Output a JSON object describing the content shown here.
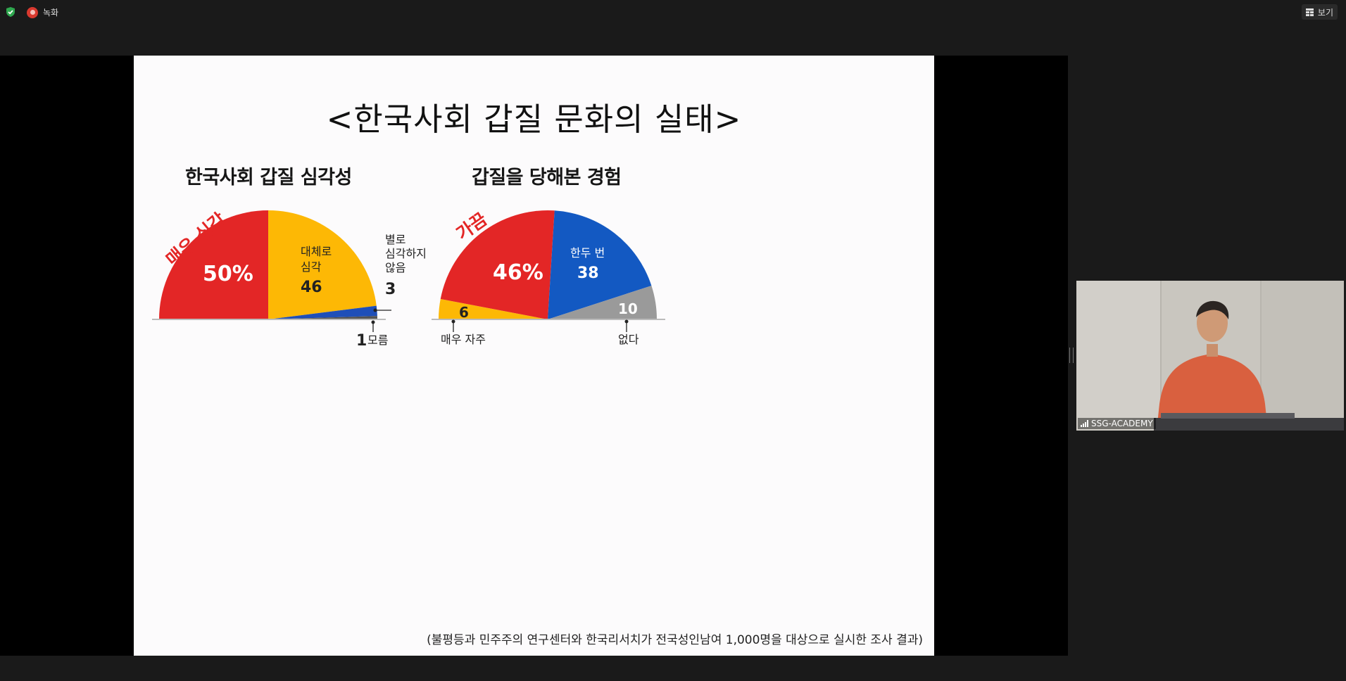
{
  "topbar": {
    "recording_label": "녹화",
    "view_label": "보기"
  },
  "slide": {
    "title": "<한국사회 갑질 문화의 실태>",
    "footnote": "(불평등과 민주주의 연구센터와 한국리서치가 전국성인남여 1,000명을 대상으로 실시한 조사 결과)"
  },
  "chart_data": [
    {
      "type": "pie",
      "title": "한국사회 갑질 심각성",
      "slices": [
        {
          "name": "매우 심각",
          "value": 50,
          "value_label": "50%",
          "color": "#e32626"
        },
        {
          "name": "대체로 심각",
          "value": 46,
          "value_label": "46",
          "color": "#fdb805"
        },
        {
          "name": "별로 심각하지 않음",
          "value": 3,
          "value_label": "3",
          "color": "#1f4fb8"
        },
        {
          "name": "모름",
          "value": 1,
          "value_label": "1",
          "color": "#555555"
        }
      ]
    },
    {
      "type": "pie",
      "title": "갑질을 당해본 경험",
      "slices": [
        {
          "name": "매우 자주",
          "value": 6,
          "value_label": "6",
          "color": "#fdb805"
        },
        {
          "name": "가끔",
          "value": 46,
          "value_label": "46%",
          "color": "#e32626"
        },
        {
          "name": "한두 번",
          "value": 38,
          "value_label": "38",
          "color": "#1359c2"
        },
        {
          "name": "없다",
          "value": 10,
          "value_label": "10",
          "color": "#9a9a9a"
        }
      ]
    }
  ],
  "webcam": {
    "participant_name": "SSG-ACADEMY"
  },
  "colors": {
    "background": "#1a1a1a",
    "slide_background": "#fcfbfc",
    "recording": "#d9392f",
    "shield": "#2fa84f"
  }
}
